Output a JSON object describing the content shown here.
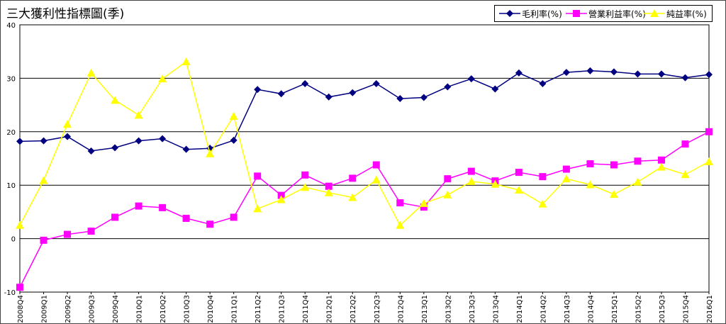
{
  "chart_data": {
    "type": "line",
    "title": "三大獲利性指標圖(季)",
    "xlabel": "",
    "ylabel": "",
    "ylim": [
      -10,
      40
    ],
    "yticks": [
      -10,
      0,
      10,
      20,
      30,
      40
    ],
    "grid": true,
    "legend_position": "top-right",
    "categories": [
      "2008Q4",
      "2009Q1",
      "2009Q2",
      "2009Q3",
      "2009Q4",
      "2010Q1",
      "2010Q2",
      "2010Q3",
      "2010Q4",
      "2011Q1",
      "2011Q2",
      "2011Q3",
      "2011Q4",
      "2012Q1",
      "2012Q2",
      "2012Q3",
      "2012Q4",
      "2013Q1",
      "2013Q2",
      "2013Q3",
      "2013Q4",
      "2014Q1",
      "2014Q2",
      "2014Q3",
      "2014Q4",
      "2015Q1",
      "2015Q2",
      "2015Q3",
      "2015Q4",
      "2016Q1"
    ],
    "series": [
      {
        "name": "毛利率(%)",
        "color": "#000080",
        "marker": "diamond",
        "values": [
          18.2,
          18.3,
          19.1,
          16.4,
          17.0,
          18.3,
          18.7,
          16.7,
          16.9,
          18.4,
          27.9,
          27.1,
          29.0,
          26.5,
          27.3,
          29.0,
          26.2,
          26.4,
          28.4,
          29.9,
          28.0,
          31.0,
          29.0,
          31.1,
          31.4,
          31.2,
          30.8,
          30.8,
          30.1,
          30.7
        ]
      },
      {
        "name": "營業利益率(%)",
        "color": "#FF00FF",
        "marker": "square",
        "values": [
          -9.1,
          -0.3,
          0.8,
          1.4,
          4.0,
          6.1,
          5.8,
          3.8,
          2.7,
          4.0,
          11.7,
          8.1,
          11.9,
          9.8,
          11.3,
          13.8,
          6.7,
          5.9,
          11.2,
          12.6,
          10.8,
          12.4,
          11.6,
          13.0,
          14.0,
          13.8,
          14.5,
          14.7,
          17.7,
          20.0
        ]
      },
      {
        "name": "純益率(%)",
        "color": "#FFFF00",
        "marker": "triangle",
        "values": [
          2.5,
          10.9,
          21.4,
          31.0,
          25.9,
          23.1,
          29.9,
          33.1,
          15.9,
          22.9,
          5.6,
          7.3,
          9.6,
          8.6,
          7.7,
          11.0,
          2.5,
          6.6,
          8.2,
          10.7,
          10.2,
          9.1,
          6.5,
          11.2,
          10.1,
          8.3,
          10.6,
          13.4,
          12.0,
          14.4
        ]
      }
    ]
  }
}
